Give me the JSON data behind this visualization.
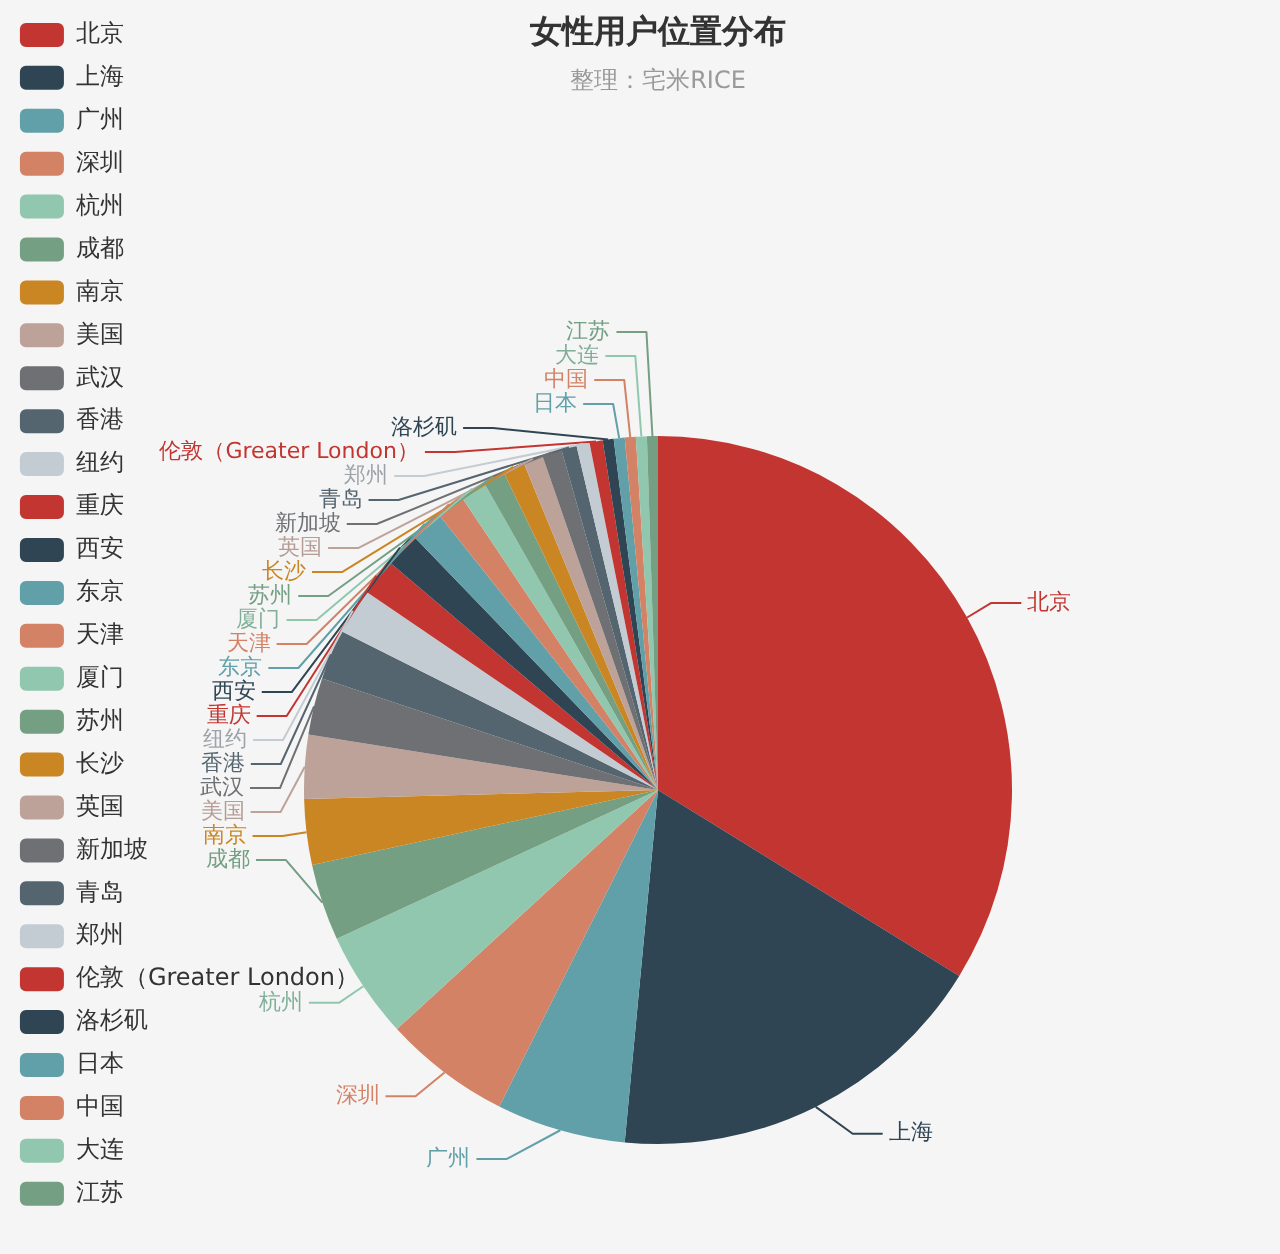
{
  "chart_data": {
    "type": "pie",
    "title": "女性用户位置分布",
    "subtitle": "整理：宅米RICE",
    "categories": [
      "北京",
      "上海",
      "广州",
      "深圳",
      "杭州",
      "成都",
      "南京",
      "美国",
      "武汉",
      "香港",
      "纽约",
      "重庆",
      "西安",
      "东京",
      "天津",
      "厦门",
      "苏州",
      "长沙",
      "英国",
      "新加坡",
      "青岛",
      "郑州",
      "伦敦（Greater London）",
      "洛杉矶",
      "日本",
      "中国",
      "大连",
      "江苏"
    ],
    "values": [
      33.8,
      17.7,
      5.9,
      5.8,
      4.9,
      3.5,
      3.0,
      2.9,
      2.6,
      2.3,
      2.1,
      1.7,
      1.6,
      1.5,
      1.3,
      1.2,
      1.0,
      1.0,
      0.9,
      0.9,
      0.7,
      0.6,
      0.6,
      0.5,
      0.5,
      0.5,
      0.5,
      0.5
    ],
    "colors": [
      "#c23531",
      "#2f4554",
      "#61a0a8",
      "#d48265",
      "#91c7ae",
      "#749f83",
      "#ca8622",
      "#bda29a",
      "#6e7074",
      "#546570",
      "#c4ccd3",
      "#c23531",
      "#2f4554",
      "#61a0a8",
      "#d48265",
      "#91c7ae",
      "#749f83",
      "#ca8622",
      "#bda29a",
      "#6e7074",
      "#546570",
      "#c4ccd3",
      "#c23531",
      "#2f4554",
      "#61a0a8",
      "#d48265",
      "#91c7ae",
      "#749f83"
    ],
    "legend": "left"
  }
}
